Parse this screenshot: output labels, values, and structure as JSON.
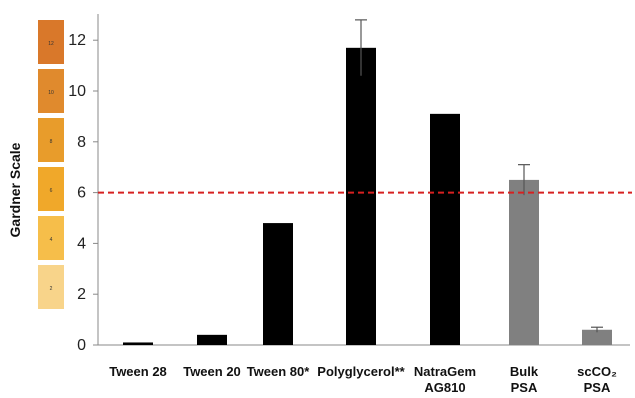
{
  "chart_data": {
    "type": "bar",
    "ylabel": "Gardner Scale",
    "ylim": [
      0,
      13
    ],
    "yticks": [
      "0",
      "2",
      "4",
      "6",
      "8",
      "10",
      "12"
    ],
    "categories": [
      [
        "Tween 28"
      ],
      [
        "Tween 20"
      ],
      [
        "Tween 80*"
      ],
      [
        "Polyglycerol**"
      ],
      [
        "NatraGem",
        "AG810"
      ],
      [
        "Bulk",
        "PSA"
      ],
      [
        "scCO₂",
        "PSA"
      ]
    ],
    "values": [
      0.1,
      0.4,
      4.8,
      11.7,
      9.1,
      6.5,
      0.6
    ],
    "error": [
      null,
      null,
      null,
      1.1,
      null,
      0.6,
      0.1
    ],
    "bar_colors": [
      "#000000",
      "#000000",
      "#000000",
      "#000000",
      "#000000",
      "#808080",
      "#808080"
    ],
    "reference_line": {
      "y": 6,
      "color": "#d62020",
      "style": "dashed"
    },
    "color_scale": [
      {
        "label": "12",
        "color": "#d9782a"
      },
      {
        "label": "10",
        "color": "#e08a2d"
      },
      {
        "label": "8",
        "color": "#e89c2b"
      },
      {
        "label": "6",
        "color": "#f0a82a"
      },
      {
        "label": "4",
        "color": "#f6be4a"
      },
      {
        "label": "2",
        "color": "#f8d48a"
      }
    ],
    "grid": false
  }
}
